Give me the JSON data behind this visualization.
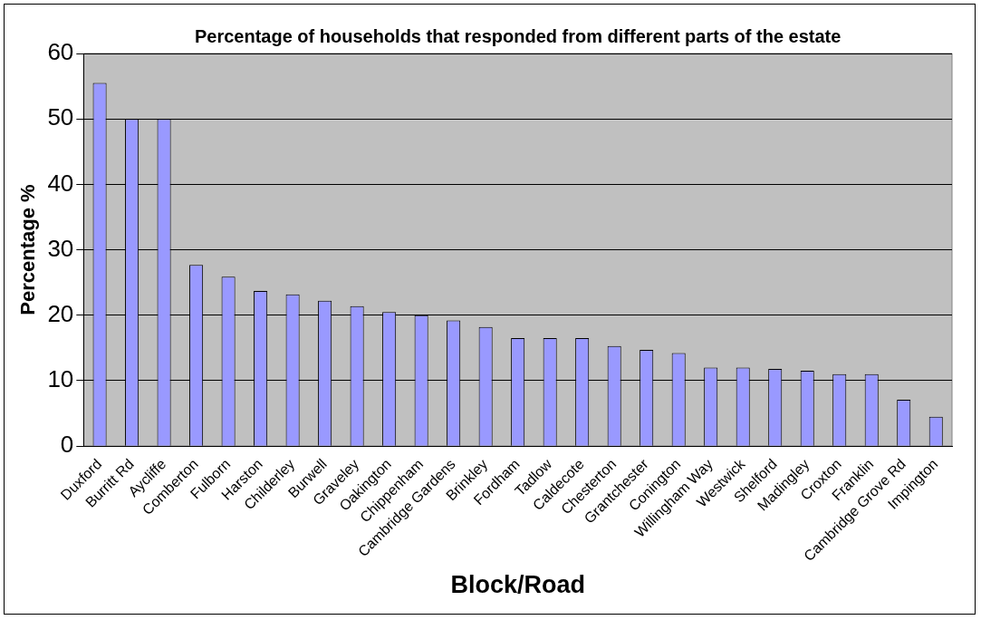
{
  "chart_data": {
    "type": "bar",
    "title": "Percentage of households that responded from different parts of the estate",
    "xlabel": "Block/Road",
    "ylabel": "Percentage %",
    "categories": [
      "Duxford",
      "Burritt Rd",
      "Aycliffe",
      "Comberton",
      "Fulborn",
      "Harston",
      "Childerley",
      "Burwell",
      "Graveley",
      "Oakington",
      "Chippenham",
      "Cambridge Gardens",
      "Brinkley",
      "Fordham",
      "Tadlow",
      "Caldecote",
      "Chesterton",
      "Grantchester",
      "Conington",
      "Willingham Way",
      "Westwick",
      "Shelford",
      "Madingley",
      "Croxton",
      "Franklin",
      "Cambridge Grove Rd",
      "Impington"
    ],
    "values": [
      55.5,
      50,
      50,
      27.7,
      25.9,
      23.7,
      23.2,
      22.2,
      21.4,
      20.5,
      20.0,
      19.2,
      18.2,
      16.5,
      16.5,
      16.5,
      15.3,
      14.7,
      14.2,
      12.0,
      12.0,
      11.8,
      11.5,
      11.0,
      11.0,
      7.1,
      4.5
    ],
    "color": "#9999ff",
    "ylim": [
      0,
      60
    ],
    "yticks": [
      0,
      10,
      20,
      30,
      40,
      50,
      60
    ],
    "grid": "y",
    "legend": false
  }
}
